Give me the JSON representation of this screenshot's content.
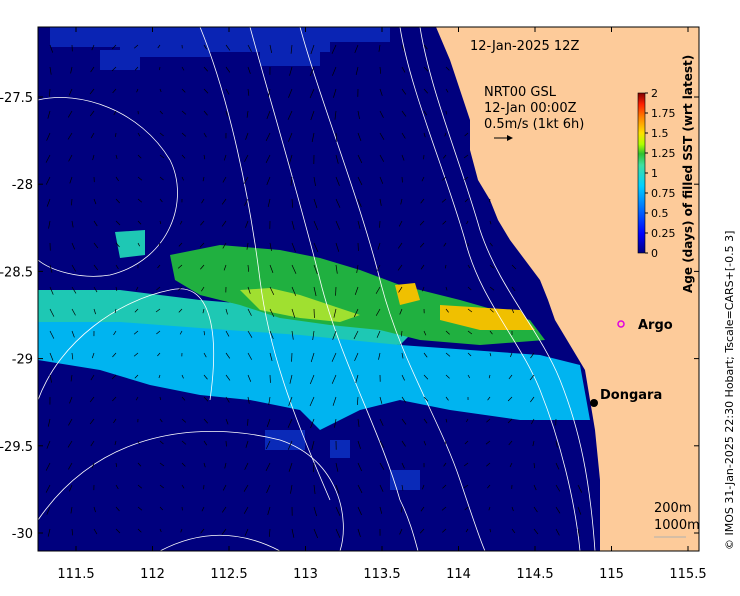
{
  "map": {
    "date_label": "12-Jan-2025 12Z",
    "current_info": {
      "product": "NRT00 GSL",
      "time": "12-Jan 00:00Z",
      "scale": "0.5m/s (1kt 6h)"
    },
    "places": [
      {
        "name": "Argo",
        "marker": "circle-open",
        "color": "#e000e0"
      },
      {
        "name": "Dongara",
        "marker": "circle-filled",
        "color": "#000000"
      }
    ],
    "depth_legend": [
      "200m",
      "1000m"
    ],
    "credit": "© IMOS 31-Jan-2025 22:30 Hobart; Tscale=CARS+[-0.5 3]",
    "x_ticks": [
      "111.5",
      "112",
      "112.5",
      "113",
      "113.5",
      "114",
      "114.5",
      "115",
      "115.5"
    ],
    "y_ticks": [
      "-27.5",
      "-28",
      "-28.5",
      "-29",
      "-29.5",
      "-30"
    ],
    "land_color": "#fdcb9a",
    "ocean_color": "#00007e"
  },
  "colorbar": {
    "label": "Age (days) of filled SST (wrt latest)",
    "ticks": [
      "0",
      "0.25",
      "0.5",
      "0.75",
      "1",
      "1.25",
      "1.5",
      "1.75",
      "2"
    ],
    "colors": [
      "#00007f",
      "#0040ff",
      "#00c0ff",
      "#40ffc0",
      "#80ff00",
      "#ffd000",
      "#ff4000",
      "#800000"
    ]
  }
}
